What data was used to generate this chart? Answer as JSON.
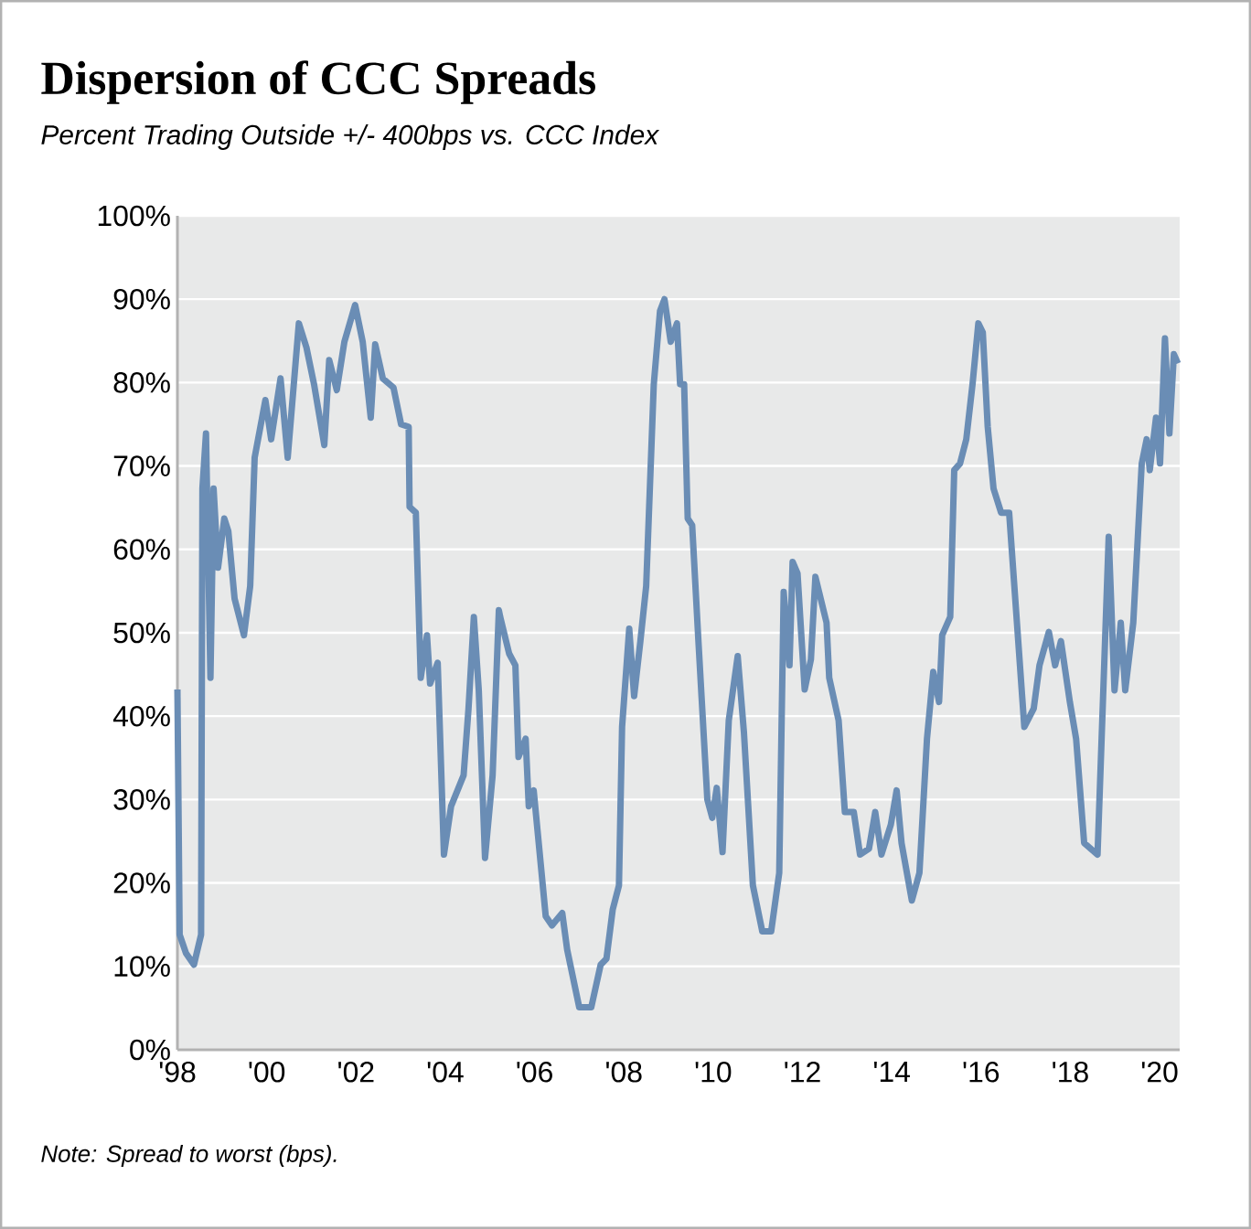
{
  "chart_data": {
    "type": "line",
    "title": "Dispersion of CCC Spreads",
    "subtitle": "Percent Trading Outside +/- 400bps vs. CCC Index",
    "annotations": [
      "Note: Spread to worst (bps)."
    ],
    "color": "#6a8db5",
    "grid": "y",
    "xlim": [
      1998,
      2020.45
    ],
    "xticks": [
      {
        "value": 1998,
        "label": "'98"
      },
      {
        "value": 2000,
        "label": "'00"
      },
      {
        "value": 2002,
        "label": "'02"
      },
      {
        "value": 2004,
        "label": "'04"
      },
      {
        "value": 2006,
        "label": "'06"
      },
      {
        "value": 2008,
        "label": "'08"
      },
      {
        "value": 2010,
        "label": "'10"
      },
      {
        "value": 2012,
        "label": "'12"
      },
      {
        "value": 2014,
        "label": "'14"
      },
      {
        "value": 2016,
        "label": "'16"
      },
      {
        "value": 2018,
        "label": "'18"
      },
      {
        "value": 2020,
        "label": "'20"
      }
    ],
    "ylim": [
      0,
      100
    ],
    "yticks": [
      {
        "value": 0,
        "label": "0%"
      },
      {
        "value": 10,
        "label": "10%"
      },
      {
        "value": 20,
        "label": "20%"
      },
      {
        "value": 30,
        "label": "30%"
      },
      {
        "value": 40,
        "label": "40%"
      },
      {
        "value": 50,
        "label": "50%"
      },
      {
        "value": 60,
        "label": "60%"
      },
      {
        "value": 70,
        "label": "70%"
      },
      {
        "value": 80,
        "label": "80%"
      },
      {
        "value": 90,
        "label": "90%"
      },
      {
        "value": 100,
        "label": "100%"
      }
    ],
    "x": [
      1998.0,
      1998.05,
      1998.19,
      1998.37,
      1998.53,
      1998.56,
      1998.64,
      1998.74,
      1998.81,
      1998.91,
      1999.05,
      1999.14,
      1999.28,
      1999.49,
      1999.63,
      1999.73,
      1999.97,
      2000.1,
      2000.31,
      2000.47,
      2000.72,
      2000.89,
      2001.06,
      2001.29,
      2001.4,
      2001.57,
      2001.74,
      2001.98,
      2002.15,
      2002.33,
      2002.43,
      2002.6,
      2002.84,
      2003.01,
      2003.18,
      2003.2,
      2003.34,
      2003.45,
      2003.59,
      2003.66,
      2003.83,
      2003.97,
      2004.13,
      2004.41,
      2004.52,
      2004.64,
      2004.75,
      2004.89,
      2005.06,
      2005.2,
      2005.23,
      2005.43,
      2005.57,
      2005.64,
      2005.8,
      2005.87,
      2005.98,
      2006.25,
      2006.39,
      2006.62,
      2006.73,
      2007.0,
      2007.27,
      2007.48,
      2007.61,
      2007.75,
      2007.89,
      2007.96,
      2008.12,
      2008.23,
      2008.37,
      2008.5,
      2008.67,
      2008.81,
      2008.91,
      2009.05,
      2009.19,
      2009.26,
      2009.35,
      2009.43,
      2009.53,
      2009.67,
      2009.87,
      2009.98,
      2010.08,
      2010.21,
      2010.35,
      2010.55,
      2010.69,
      2010.89,
      2011.1,
      2011.3,
      2011.48,
      2011.58,
      2011.71,
      2011.78,
      2011.89,
      2012.05,
      2012.19,
      2012.29,
      2012.54,
      2012.6,
      2012.81,
      2012.95,
      2013.15,
      2013.29,
      2013.49,
      2013.63,
      2013.77,
      2013.98,
      2014.11,
      2014.22,
      2014.45,
      2014.62,
      2014.79,
      2014.93,
      2015.06,
      2015.13,
      2015.31,
      2015.4,
      2015.53,
      2015.67,
      2015.81,
      2015.94,
      2016.04,
      2016.15,
      2016.28,
      2016.45,
      2016.63,
      2016.97,
      2017.18,
      2017.31,
      2017.52,
      2017.66,
      2017.79,
      2017.99,
      2018.13,
      2018.31,
      2018.61,
      2018.86,
      2018.99,
      2019.13,
      2019.23,
      2019.41,
      2019.6,
      2019.71,
      2019.78,
      2019.92,
      2020.01,
      2020.12,
      2020.22,
      2020.32,
      2020.41
    ],
    "values": [
      43.2,
      13.8,
      11.6,
      10.2,
      13.8,
      67.3,
      73.9,
      44.6,
      67.3,
      57.8,
      63.7,
      62.2,
      54.1,
      49.7,
      55.6,
      71.0,
      77.9,
      73.2,
      80.5,
      71.0,
      87.1,
      84.2,
      79.8,
      72.5,
      82.7,
      79.1,
      84.9,
      89.3,
      84.9,
      75.8,
      84.6,
      80.5,
      79.4,
      75.0,
      74.7,
      65.1,
      64.4,
      44.6,
      49.7,
      43.9,
      46.4,
      23.4,
      29.2,
      32.9,
      40.9,
      51.9,
      43.1,
      23.0,
      32.9,
      52.7,
      51.9,
      47.5,
      46.1,
      35.1,
      37.3,
      29.2,
      31.1,
      16.0,
      14.9,
      16.4,
      12.0,
      5.1,
      5.1,
      10.2,
      10.9,
      16.8,
      19.7,
      38.7,
      50.5,
      42.4,
      49.0,
      55.6,
      79.8,
      88.6,
      90.0,
      84.9,
      87.1,
      79.8,
      79.8,
      63.7,
      62.9,
      49.0,
      30.0,
      27.8,
      31.4,
      23.7,
      39.5,
      47.2,
      38.0,
      19.7,
      14.2,
      14.2,
      21.2,
      54.9,
      46.1,
      58.5,
      57.1,
      43.2,
      46.8,
      56.7,
      51.2,
      44.6,
      39.5,
      28.5,
      28.5,
      23.4,
      24.1,
      28.5,
      23.4,
      27.0,
      31.1,
      24.8,
      17.9,
      21.2,
      37.3,
      45.3,
      41.7,
      49.7,
      51.9,
      69.5,
      70.3,
      73.2,
      79.8,
      87.1,
      86.0,
      74.7,
      67.3,
      64.4,
      64.4,
      38.7,
      40.9,
      46.1,
      50.1,
      46.1,
      49.0,
      41.7,
      37.3,
      24.8,
      23.4,
      61.5,
      43.1,
      51.2,
      43.1,
      51.2,
      70.3,
      73.2,
      69.5,
      75.8,
      70.3,
      85.3,
      73.9,
      83.4,
      82.3
    ]
  }
}
